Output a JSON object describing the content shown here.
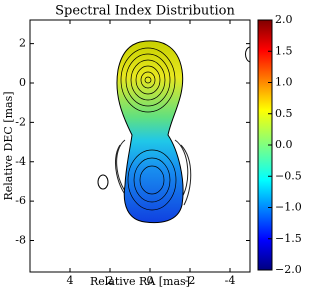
{
  "chart_data": {
    "type": "image",
    "title": "Spectral Index Distribution",
    "xlabel": "Relative RA [mas]",
    "ylabel": "Relative DEC [mas]",
    "xlim": [
      6,
      -5
    ],
    "ylim": [
      -9.6,
      3.2
    ],
    "xticks": [
      4,
      2,
      0,
      -2,
      -4
    ],
    "yticks": [
      2,
      0,
      -2,
      -4,
      -6,
      -8
    ],
    "clim": [
      -2,
      2
    ],
    "colormap": "jet",
    "cticks": [
      {
        "value": 2,
        "label": "2.0"
      },
      {
        "value": 1.5,
        "label": "1.5"
      },
      {
        "value": 1,
        "label": "1.0"
      },
      {
        "value": 0.5,
        "label": "0.5"
      },
      {
        "value": 0,
        "label": "0.0"
      },
      {
        "value": -0.5,
        "label": "−0.5"
      },
      {
        "value": -1,
        "label": "−1.0"
      },
      {
        "value": -1.5,
        "label": "−1.5"
      },
      {
        "value": -2,
        "label": "−2.0"
      }
    ]
  }
}
